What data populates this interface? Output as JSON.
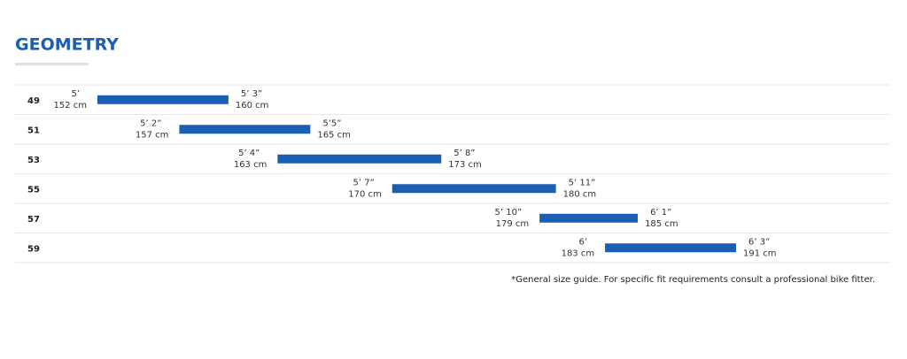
{
  "chart_data": {
    "type": "range_bar",
    "title": "GEOMETRY",
    "categories": [
      "49",
      "51",
      "53",
      "55",
      "57",
      "59"
    ],
    "low": {
      "values": [
        152,
        157,
        163,
        170,
        179,
        183
      ],
      "value_labels": [
        "152 cm",
        "157 cm",
        "163 cm",
        "170 cm",
        "179 cm",
        "183 cm"
      ],
      "imperial": [
        "5’",
        "5’ 2”",
        "5’ 4”",
        "5’ 7”",
        "5’ 10”",
        "6’"
      ]
    },
    "high": {
      "values": [
        160,
        165,
        173,
        180,
        185,
        191
      ],
      "value_labels": [
        "160 cm",
        "165 cm",
        "173 cm",
        "180 cm",
        "185 cm",
        "191 cm"
      ],
      "imperial": [
        "5’ 3”",
        "5’5”",
        "5’ 8”",
        "5’ 11”",
        "6’ 1”",
        "6’ 3”"
      ]
    },
    "color": "#1a5fb4",
    "footnote": "*General size guide. For specific fit requirements consult a professional bike fitter."
  }
}
